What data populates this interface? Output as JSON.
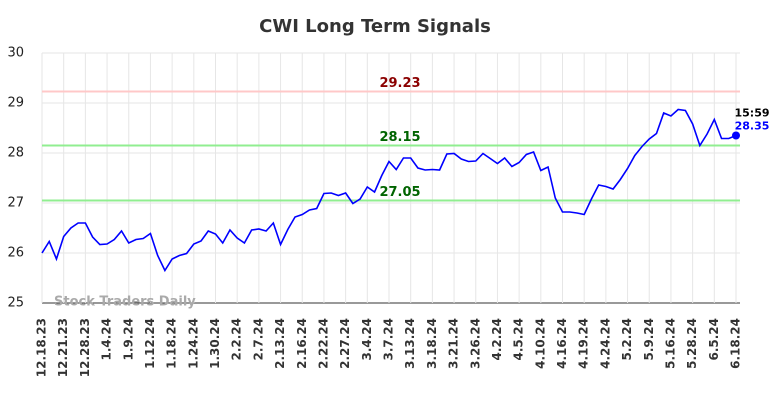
{
  "chart_data": {
    "type": "line",
    "title": "CWI Long Term Signals",
    "categories": [
      "12.18.23",
      null,
      null,
      "12.21.23",
      null,
      null,
      "12.28.23",
      null,
      null,
      "1.4.24",
      null,
      null,
      "1.9.24",
      null,
      null,
      "1.12.24",
      null,
      null,
      "1.18.24",
      null,
      null,
      "1.24.24",
      null,
      null,
      "1.30.24",
      null,
      null,
      "2.2.24",
      null,
      null,
      "2.7.24",
      null,
      null,
      "2.13.24",
      null,
      null,
      "2.16.24",
      null,
      null,
      "2.22.24",
      null,
      null,
      "2.27.24",
      null,
      null,
      "3.4.24",
      null,
      null,
      "3.7.24",
      null,
      null,
      "3.13.24",
      null,
      null,
      "3.18.24",
      null,
      null,
      "3.21.24",
      null,
      null,
      "3.26.24",
      null,
      null,
      "4.2.24",
      null,
      null,
      "4.5.24",
      null,
      null,
      "4.10.24",
      null,
      null,
      "4.16.24",
      null,
      null,
      "4.19.24",
      null,
      null,
      "4.24.24",
      null,
      null,
      "5.2.24",
      null,
      null,
      "5.9.24",
      null,
      null,
      "5.16.24",
      null,
      null,
      "5.28.24",
      null,
      null,
      "6.5.24",
      null,
      null,
      "6.18.24"
    ],
    "series": [
      {
        "name": "CWI",
        "color": "#0000ff",
        "values": [
          26.0,
          26.23,
          25.88,
          26.33,
          26.5,
          26.6,
          26.6,
          26.32,
          26.17,
          26.18,
          26.27,
          26.44,
          26.2,
          26.27,
          26.29,
          26.39,
          25.95,
          25.65,
          25.88,
          25.95,
          25.99,
          26.18,
          26.24,
          26.44,
          26.38,
          26.2,
          26.46,
          26.3,
          26.2,
          26.46,
          26.48,
          26.44,
          26.6,
          26.17,
          26.47,
          26.72,
          26.77,
          26.86,
          26.89,
          27.19,
          27.2,
          27.15,
          27.2,
          26.99,
          27.08,
          27.32,
          27.22,
          27.55,
          27.83,
          27.67,
          27.9,
          27.9,
          27.7,
          27.66,
          27.67,
          27.66,
          27.98,
          27.99,
          27.88,
          27.83,
          27.84,
          27.99,
          27.89,
          27.79,
          27.9,
          27.73,
          27.81,
          27.97,
          28.02,
          27.65,
          27.72,
          27.1,
          26.82,
          26.82,
          26.8,
          26.77,
          27.08,
          27.36,
          27.33,
          27.28,
          27.47,
          27.69,
          27.95,
          28.13,
          28.28,
          28.39,
          28.8,
          28.74,
          28.87,
          28.85,
          28.58,
          28.15,
          28.38,
          28.67,
          28.29,
          28.29,
          28.35
        ]
      }
    ],
    "levels": [
      {
        "value": 29.23,
        "color": "#ffc8c8",
        "label_color": "#8b0000"
      },
      {
        "value": 28.15,
        "color": "#90ee90",
        "label_color": "#006400"
      },
      {
        "value": 27.05,
        "color": "#90ee90",
        "label_color": "#006400"
      }
    ],
    "last_time": "15:59",
    "watermark": "Stock Traders Daily",
    "ylim": [
      25,
      30
    ],
    "yticks": [
      25,
      26,
      27,
      28,
      29,
      30
    ],
    "grid": true
  }
}
